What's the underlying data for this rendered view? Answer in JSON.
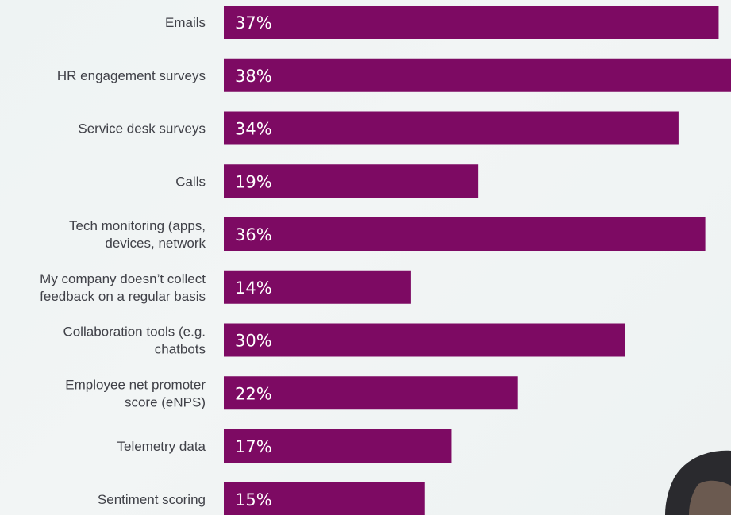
{
  "chart_data": {
    "type": "bar",
    "orientation": "horizontal",
    "categories": [
      [
        "Emails"
      ],
      [
        "HR engagement surveys"
      ],
      [
        "Service desk surveys"
      ],
      [
        "Calls"
      ],
      [
        "Tech monitoring (apps,",
        "devices, network"
      ],
      [
        "My company doesn’t collect",
        "feedback on a regular basis"
      ],
      [
        "Collaboration tools (e.g.",
        "chatbots"
      ],
      [
        "Employee net promoter",
        "score (eNPS)"
      ],
      [
        "Telemetry data"
      ],
      [
        "Sentiment scoring"
      ]
    ],
    "values": [
      37,
      38,
      34,
      19,
      36,
      14,
      30,
      22,
      17,
      15
    ],
    "value_labels": [
      "37%",
      "38%",
      "34%",
      "19%",
      "36%",
      "14%",
      "30%",
      "22%",
      "17%",
      "15%"
    ],
    "unit": "%",
    "colors": {
      "bar": "#7d0a63",
      "value_label": "#ffffff",
      "category_label": "#404148"
    }
  }
}
